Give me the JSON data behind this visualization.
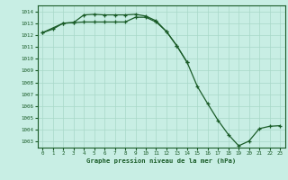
{
  "title": "Graphe pression niveau de la mer (hPa)",
  "bg_color": "#c8eee4",
  "grid_color": "#a8d8c8",
  "line_color": "#1a5c28",
  "tick_color": "#1a5c28",
  "title_color": "#1a5c28",
  "ylim": [
    1002.5,
    1014.5
  ],
  "xlim": [
    -0.5,
    23.5
  ],
  "yticks": [
    1003,
    1004,
    1005,
    1006,
    1007,
    1008,
    1009,
    1010,
    1011,
    1012,
    1013,
    1014
  ],
  "xticks": [
    0,
    1,
    2,
    3,
    4,
    5,
    6,
    7,
    8,
    9,
    10,
    11,
    12,
    13,
    14,
    15,
    16,
    17,
    18,
    19,
    20,
    21,
    22,
    23
  ],
  "line1_x": [
    0,
    1,
    2,
    3,
    4,
    5,
    6,
    7,
    8,
    9,
    10,
    11,
    12,
    13,
    14
  ],
  "line1_y": [
    1012.2,
    1012.5,
    1013.0,
    1013.05,
    1013.7,
    1013.75,
    1013.7,
    1013.7,
    1013.7,
    1013.75,
    1013.6,
    1013.2,
    1012.3,
    1011.1,
    1009.7
  ],
  "line2_x": [
    0,
    2,
    3,
    4,
    5,
    6,
    7,
    8,
    9,
    10,
    11,
    12,
    13,
    14,
    15,
    16,
    17,
    18,
    19,
    20,
    21,
    22,
    23
  ],
  "line2_y": [
    1012.2,
    1013.0,
    1013.05,
    1013.1,
    1013.1,
    1013.1,
    1013.1,
    1013.1,
    1013.5,
    1013.5,
    1013.1,
    1012.3,
    1011.1,
    1009.7,
    1007.65,
    1006.2,
    1004.8,
    1003.6,
    1002.65,
    1003.05,
    1004.1,
    1004.3,
    1004.35
  ],
  "linewidth": 0.9,
  "markersize": 2.8,
  "tick_fontsize": 4.2,
  "title_fontsize": 5.2
}
